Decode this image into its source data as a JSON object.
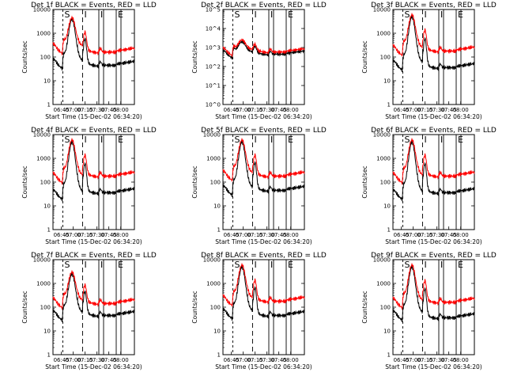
{
  "figure": {
    "x_label": "Start Time (15-Dec-02 06:34:20)",
    "y_label": "Counts/sec",
    "time_ticks": [
      "06:45",
      "07:00",
      "07:15",
      "07:30",
      "07:45",
      "08:00"
    ],
    "colors": {
      "events": "#000000",
      "lld": "#ff0000",
      "axis": "#000000"
    }
  },
  "chart_data": [
    {
      "type": "line",
      "title": "Det 1f BLACK = Events, RED = LLD",
      "ylim": [
        1,
        10000
      ],
      "y_ticks": [
        "1",
        "10",
        "100",
        "1000",
        "10000"
      ],
      "x_range_min": [
        0,
        103
      ],
      "markers": [
        {
          "label": "S",
          "t": 12.5
        },
        {
          "label": "I",
          "t": 37.5
        },
        {
          "label": "I",
          "t": 58
        },
        {
          "label": "E",
          "t": 80
        }
      ],
      "background": {
        "events": 70,
        "lld": 300
      },
      "peak": {
        "events": 4000,
        "lld": 4500
      },
      "post": {
        "events": 50,
        "lld": 180
      }
    },
    {
      "type": "line",
      "title": "Det 2f BLACK = Events, RED = LLD",
      "ylim": [
        1,
        100000
      ],
      "y_ticks": [
        "10^0",
        "10^1",
        "10^2",
        "10^3",
        "10^4",
        "10^5"
      ],
      "x_range_min": [
        0,
        103
      ],
      "markers": [
        {
          "label": "S",
          "t": 12.5
        },
        {
          "label": "I",
          "t": 37.5
        },
        {
          "label": "I",
          "t": 58
        },
        {
          "label": "E",
          "t": 80
        }
      ],
      "background": {
        "events": 600,
        "lld": 800
      },
      "peak": {
        "events": 2000,
        "lld": 2500
      },
      "post": {
        "events": 500,
        "lld": 650
      }
    },
    {
      "type": "line",
      "title": "Det 3f BLACK = Events, RED = LLD",
      "ylim": [
        1,
        10000
      ],
      "y_ticks": [
        "1",
        "10",
        "100",
        "1000",
        "10000"
      ],
      "x_range_min": [
        0,
        103
      ],
      "markers": [
        {
          "label": "S",
          "t": 12.5
        },
        {
          "label": "I",
          "t": 37.5
        },
        {
          "label": "I",
          "t": 58
        },
        {
          "label": "E",
          "t": 80
        }
      ],
      "background": {
        "events": 60,
        "lld": 250
      },
      "peak": {
        "events": 5000,
        "lld": 6000
      },
      "post": {
        "events": 40,
        "lld": 200
      }
    },
    {
      "type": "line",
      "title": "Det 4f BLACK = Events, RED = LLD",
      "ylim": [
        1,
        10000
      ],
      "y_ticks": [
        "1",
        "10",
        "100",
        "1000",
        "10000"
      ],
      "x_range_min": [
        0,
        103
      ],
      "markers": [
        {
          "label": "S",
          "t": 12.5
        },
        {
          "label": "I",
          "t": 37.5
        },
        {
          "label": "I",
          "t": 58
        },
        {
          "label": "E",
          "t": 80
        }
      ],
      "background": {
        "events": 40,
        "lld": 200
      },
      "peak": {
        "events": 5000,
        "lld": 6000
      },
      "post": {
        "events": 40,
        "lld": 200
      }
    },
    {
      "type": "line",
      "title": "Det 5f BLACK = Events, RED = LLD",
      "ylim": [
        1,
        10000
      ],
      "y_ticks": [
        "1",
        "10",
        "100",
        "1000",
        "10000"
      ],
      "x_range_min": [
        0,
        103
      ],
      "markers": [
        {
          "label": "S",
          "t": 12.5
        },
        {
          "label": "I",
          "t": 37.5
        },
        {
          "label": "I",
          "t": 58
        },
        {
          "label": "E",
          "t": 80
        }
      ],
      "background": {
        "events": 60,
        "lld": 250
      },
      "peak": {
        "events": 5000,
        "lld": 6000
      },
      "post": {
        "events": 50,
        "lld": 200
      }
    },
    {
      "type": "line",
      "title": "Det 6f BLACK = Events, RED = LLD",
      "ylim": [
        1,
        10000
      ],
      "y_ticks": [
        "1",
        "10",
        "100",
        "1000",
        "10000"
      ],
      "x_range_min": [
        0,
        103
      ],
      "markers": [
        {
          "label": "S",
          "t": 12.5
        },
        {
          "label": "I",
          "t": 37.5
        },
        {
          "label": "I",
          "t": 58
        },
        {
          "label": "E",
          "t": 80
        }
      ],
      "background": {
        "events": 40,
        "lld": 200
      },
      "peak": {
        "events": 5000,
        "lld": 6000
      },
      "post": {
        "events": 40,
        "lld": 200
      }
    },
    {
      "type": "line",
      "title": "Det 7f BLACK = Events, RED = LLD",
      "ylim": [
        1,
        10000
      ],
      "y_ticks": [
        "1",
        "10",
        "100",
        "1000",
        "10000"
      ],
      "x_range_min": [
        0,
        103
      ],
      "markers": [
        {
          "label": "S",
          "t": 12.5
        },
        {
          "label": "I",
          "t": 37.5
        },
        {
          "label": "I",
          "t": 58
        },
        {
          "label": "E",
          "t": 80
        }
      ],
      "background": {
        "events": 60,
        "lld": 200
      },
      "peak": {
        "events": 2500,
        "lld": 3000
      },
      "post": {
        "events": 50,
        "lld": 160
      }
    },
    {
      "type": "line",
      "title": "Det 8f BLACK = Events, RED = LLD",
      "ylim": [
        1,
        10000
      ],
      "y_ticks": [
        "1",
        "10",
        "100",
        "1000",
        "10000"
      ],
      "x_range_min": [
        0,
        103
      ],
      "markers": [
        {
          "label": "S",
          "t": 12.5
        },
        {
          "label": "I",
          "t": 37.5
        },
        {
          "label": "I",
          "t": 58
        },
        {
          "label": "E",
          "t": 80
        }
      ],
      "background": {
        "events": 70,
        "lld": 250
      },
      "peak": {
        "events": 5000,
        "lld": 6000
      },
      "post": {
        "events": 50,
        "lld": 200
      }
    },
    {
      "type": "line",
      "title": "Det 9f BLACK = Events, RED = LLD",
      "ylim": [
        1,
        10000
      ],
      "y_ticks": [
        "1",
        "10",
        "100",
        "1000",
        "10000"
      ],
      "x_range_min": [
        0,
        103
      ],
      "markers": [
        {
          "label": "S",
          "t": 12.5
        },
        {
          "label": "I",
          "t": 37.5
        },
        {
          "label": "I",
          "t": 58
        },
        {
          "label": "E",
          "t": 80
        }
      ],
      "background": {
        "events": 60,
        "lld": 200
      },
      "peak": {
        "events": 5000,
        "lld": 6000
      },
      "post": {
        "events": 40,
        "lld": 180
      }
    }
  ]
}
